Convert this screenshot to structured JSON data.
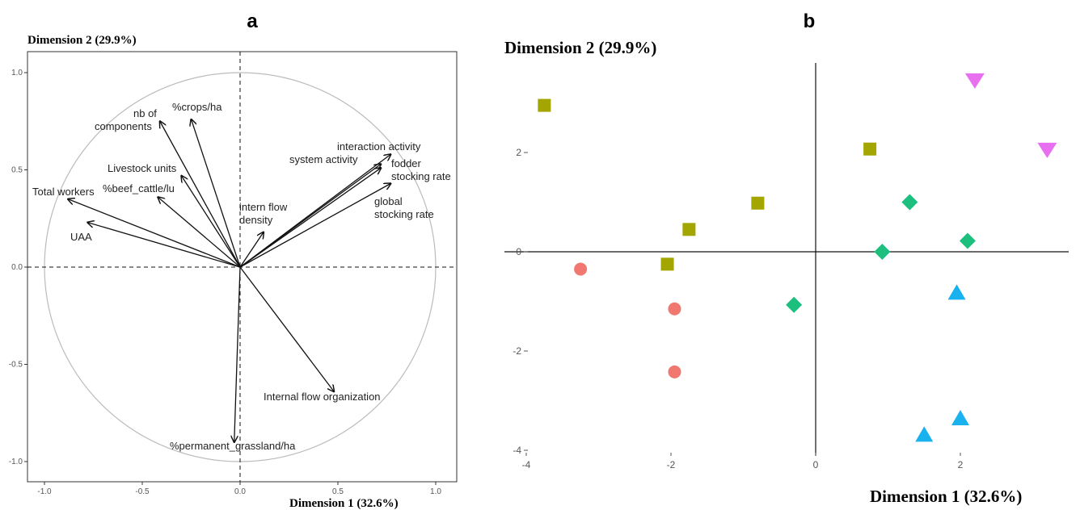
{
  "chart_data": [
    {
      "panel": "a",
      "type": "correlation_circle",
      "ylabel": "Dimension 2 (29.9%)",
      "xlabel": "Dimension 1 (32.6%)",
      "xlim": [
        -1.05,
        1.05
      ],
      "ylim": [
        -1.05,
        1.05
      ],
      "xticks": [
        "-1.0",
        "-0.5",
        "0.0",
        "0.5",
        "1.0"
      ],
      "yticks": [
        "-1.0",
        "-0.5",
        "0.0",
        "0.5",
        "1.0"
      ],
      "arrows": [
        {
          "label": "nb of\ncomponents",
          "x": -0.41,
          "y": 0.75
        },
        {
          "label": "%crops/ha",
          "x": -0.25,
          "y": 0.76
        },
        {
          "label": "Livestock units",
          "x": -0.3,
          "y": 0.47
        },
        {
          "label": "%beef_cattle/lu",
          "x": -0.42,
          "y": 0.36
        },
        {
          "label": "Total workers",
          "x": -0.88,
          "y": 0.35
        },
        {
          "label": "UAA",
          "x": -0.78,
          "y": 0.23
        },
        {
          "label": "intern flow\ndensity",
          "x": 0.12,
          "y": 0.18
        },
        {
          "label": "system activity",
          "x": 0.72,
          "y": 0.53
        },
        {
          "label": "interaction activity",
          "x": 0.77,
          "y": 0.58
        },
        {
          "label": "fodder\nstocking rate",
          "x": 0.72,
          "y": 0.51
        },
        {
          "label": "global\nstocking rate",
          "x": 0.77,
          "y": 0.43
        },
        {
          "label": "Internal flow organization",
          "x": 0.48,
          "y": -0.64
        },
        {
          "label": "%permanent_grassland/ha",
          "x": -0.03,
          "y": -0.9
        }
      ]
    },
    {
      "panel": "b",
      "type": "scatter",
      "ylabel": "Dimension 2 (29.9%)",
      "xlabel": "Dimension 1 (32.6%)",
      "xlim": [
        -4.15,
        3.5
      ],
      "ylim": [
        -4.1,
        3.7
      ],
      "xticks": [
        -4,
        -2,
        0,
        2
      ],
      "yticks": [
        -4,
        -2,
        0,
        2
      ],
      "series": [
        {
          "shape": "circle",
          "color": "#f07870",
          "points": [
            [
              -3.25,
              -0.35
            ],
            [
              -1.95,
              -1.15
            ],
            [
              -1.95,
              -2.42
            ]
          ]
        },
        {
          "shape": "square",
          "color": "#a3a500",
          "points": [
            [
              -3.75,
              2.95
            ],
            [
              0.75,
              2.07
            ],
            [
              -0.8,
              0.98
            ],
            [
              -1.75,
              0.45
            ],
            [
              -2.05,
              -0.25
            ]
          ]
        },
        {
          "shape": "diamond",
          "color": "#1dbf7f",
          "points": [
            [
              1.3,
              1.0
            ],
            [
              2.1,
              0.22
            ],
            [
              0.92,
              0.0
            ],
            [
              -0.3,
              -1.07
            ]
          ]
        },
        {
          "shape": "triangle-up",
          "color": "#19b2ef",
          "points": [
            [
              1.95,
              -0.82
            ],
            [
              2.0,
              -3.35
            ],
            [
              1.5,
              -3.68
            ]
          ]
        },
        {
          "shape": "triangle-down",
          "color": "#e86ff0",
          "points": [
            [
              2.2,
              3.45
            ],
            [
              3.2,
              2.05
            ]
          ]
        }
      ]
    }
  ],
  "panel_labels": {
    "a": "a",
    "b": "b"
  }
}
